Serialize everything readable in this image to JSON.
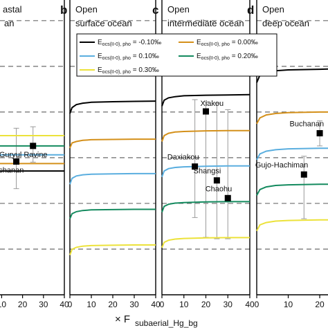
{
  "chart_data": {
    "type": "line",
    "xlabel_main": "× F",
    "xlabel_sub": "subaerial_Hg_bg",
    "legend": {
      "entries": [
        {
          "label": "E",
          "sub": "ocs(II-0), pho",
          "value": "= -0.10‰",
          "color": "#000000"
        },
        {
          "label": "E",
          "sub": "ocs(II-0), pho",
          "value": "= 0.00‰",
          "color": "#d4901a"
        },
        {
          "label": "E",
          "sub": "ocs(II-0), pho",
          "value": "= 0.10‰",
          "color": "#5aaedf"
        },
        {
          "label": "E",
          "sub": "ocs(II-0), pho",
          "value": "= 0.20‰",
          "color": "#138a5e"
        },
        {
          "label": "E",
          "sub": "ocs(II-0), pho",
          "value": "= 0.30‰",
          "color": "#ece23a"
        }
      ]
    },
    "panels": [
      {
        "letter": "",
        "title": [
          "astal",
          "an"
        ],
        "ticks": [
          "10",
          "20",
          "30",
          "40"
        ],
        "visible_range": [
          9.2,
          40
        ],
        "series": [
          {
            "color": "#000000",
            "x": [
              9.2,
              40
            ],
            "y": [
              0.42,
              0.42
            ]
          },
          {
            "color": "#d4901a",
            "x": [
              9.2,
              40
            ],
            "y": [
              0.445,
              0.445
            ]
          },
          {
            "color": "#5aaedf",
            "x": [
              9.2,
              40
            ],
            "y": [
              0.475,
              0.475
            ]
          },
          {
            "color": "#138a5e",
            "x": [
              9.2,
              40
            ],
            "y": [
              0.505,
              0.505
            ]
          },
          {
            "color": "#ece23a",
            "x": [
              9.2,
              40
            ],
            "y": [
              0.54,
              0.54
            ]
          }
        ],
        "sites": [
          {
            "name": "Guryul Ravine",
            "x": 25,
            "y": 0.505,
            "err": [
              0.45,
              0.57
            ],
            "label_pos": "below-left"
          },
          {
            "name": "Buchanan",
            "x": 17,
            "y": 0.452,
            "err": [
              0.36,
              0.565
            ],
            "label_pos": "below-left"
          }
        ]
      },
      {
        "letter": "b",
        "title": [
          "Open",
          "surface ocean"
        ],
        "ticks": [
          "0",
          "10",
          "20",
          "30",
          "40"
        ],
        "visible_range": [
          0,
          40
        ],
        "series": [
          {
            "color": "#000000",
            "x": [
              0,
              1,
              3,
              6,
              10,
              20,
              30,
              40
            ],
            "y": [
              0.615,
              0.635,
              0.645,
              0.65,
              0.653,
              0.655,
              0.656,
              0.657
            ]
          },
          {
            "color": "#d4901a",
            "x": [
              0,
              1,
              3,
              6,
              10,
              20,
              30,
              40
            ],
            "y": [
              0.498,
              0.515,
              0.52,
              0.524,
              0.526,
              0.527,
              0.528,
              0.528
            ]
          },
          {
            "color": "#5aaedf",
            "x": [
              0,
              1,
              3,
              6,
              10,
              20,
              30,
              40
            ],
            "y": [
              0.375,
              0.395,
              0.403,
              0.407,
              0.409,
              0.41,
              0.411,
              0.411
            ]
          },
          {
            "color": "#138a5e",
            "x": [
              0,
              1,
              3,
              6,
              10,
              20,
              30,
              40
            ],
            "y": [
              0.258,
              0.275,
              0.282,
              0.286,
              0.288,
              0.289,
              0.29,
              0.29
            ]
          },
          {
            "color": "#ece23a",
            "x": [
              0,
              1,
              3,
              6,
              10,
              20,
              30,
              40
            ],
            "y": [
              0.135,
              0.154,
              0.161,
              0.165,
              0.167,
              0.168,
              0.169,
              0.169
            ]
          }
        ],
        "sites": []
      },
      {
        "letter": "c",
        "title": [
          "Open",
          "intermediate ocean"
        ],
        "ticks": [
          "0",
          "10",
          "20",
          "30",
          "40"
        ],
        "visible_range": [
          0,
          40
        ],
        "series": [
          {
            "color": "#000000",
            "x": [
              0,
              1,
              3,
              6,
              10,
              20,
              30,
              40
            ],
            "y": [
              0.64,
              0.66,
              0.668,
              0.672,
              0.675,
              0.677,
              0.678,
              0.679
            ]
          },
          {
            "color": "#d4901a",
            "x": [
              0,
              1,
              3,
              6,
              10,
              20,
              30,
              40
            ],
            "y": [
              0.52,
              0.54,
              0.548,
              0.552,
              0.554,
              0.556,
              0.557,
              0.557
            ]
          },
          {
            "color": "#5aaedf",
            "x": [
              0,
              1,
              3,
              6,
              10,
              20,
              30,
              40
            ],
            "y": [
              0.4,
              0.42,
              0.428,
              0.432,
              0.434,
              0.436,
              0.437,
              0.437
            ]
          },
          {
            "color": "#138a5e",
            "x": [
              0,
              1,
              3,
              6,
              10,
              20,
              30,
              40
            ],
            "y": [
              0.28,
              0.3,
              0.307,
              0.311,
              0.313,
              0.315,
              0.316,
              0.316
            ]
          },
          {
            "color": "#ece23a",
            "x": [
              0,
              1,
              3,
              6,
              10,
              20,
              30,
              40
            ],
            "y": [
              0.16,
              0.178,
              0.185,
              0.189,
              0.191,
              0.193,
              0.194,
              0.194
            ]
          }
        ],
        "sites": [
          {
            "name": "Xiakou",
            "x": 20,
            "y": 0.622,
            "err": [
              0.195,
              0.655
            ],
            "label_pos": "above-right"
          },
          {
            "name": "Daxiakou",
            "x": 15,
            "y": 0.435,
            "err": [
              0.262,
              0.662
            ],
            "label_pos": "above-left"
          },
          {
            "name": "Shangsi",
            "x": 25,
            "y": 0.388,
            "err": [
              0.19,
              0.65
            ],
            "label_pos": "above-left"
          },
          {
            "name": "Chaohu",
            "x": 30,
            "y": 0.328,
            "err": [
              0.19,
              0.628
            ],
            "label_pos": "above-left"
          }
        ]
      },
      {
        "letter": "d",
        "title": [
          "Open",
          "deep ocean"
        ],
        "ticks": [
          "0",
          "10",
          "20"
        ],
        "visible_range": [
          0,
          23.5
        ],
        "series": [
          {
            "color": "#000000",
            "x": [
              0,
              1,
              3,
              6,
              10,
              20,
              23.5
            ],
            "y": [
              0.72,
              0.745,
              0.755,
              0.76,
              0.763,
              0.765,
              0.766
            ]
          },
          {
            "color": "#d4901a",
            "x": [
              0,
              1,
              3,
              6,
              10,
              20,
              23.5
            ],
            "y": [
              0.58,
              0.6,
              0.61,
              0.615,
              0.618,
              0.62,
              0.62
            ]
          },
          {
            "color": "#5aaedf",
            "x": [
              0,
              1,
              3,
              6,
              10,
              20,
              23.5
            ],
            "y": [
              0.458,
              0.478,
              0.487,
              0.492,
              0.495,
              0.497,
              0.497
            ]
          },
          {
            "color": "#138a5e",
            "x": [
              0,
              1,
              3,
              6,
              10,
              20,
              23.5
            ],
            "y": [
              0.337,
              0.357,
              0.366,
              0.371,
              0.373,
              0.375,
              0.375
            ]
          },
          {
            "color": "#ece23a",
            "x": [
              0,
              1,
              3,
              6,
              10,
              20,
              23.5
            ],
            "y": [
              0.217,
              0.237,
              0.245,
              0.25,
              0.252,
              0.254,
              0.254
            ]
          }
        ],
        "sites": [
          {
            "name": "Buchanan",
            "x": 20,
            "y": 0.548,
            "err": [
              0.505,
              0.59
            ],
            "label_pos": "above-left"
          },
          {
            "name": "Gujo-Hachiman",
            "x": 15,
            "y": 0.408,
            "err": [
              0.258,
              0.47
            ],
            "label_pos": "above-left"
          }
        ]
      }
    ],
    "ylim": [
      0,
      1
    ],
    "grid": "dashed horizontal reference lines",
    "reference_lines": [
      0.155,
      0.31,
      0.465,
      0.62,
      0.775,
      0.93
    ]
  }
}
